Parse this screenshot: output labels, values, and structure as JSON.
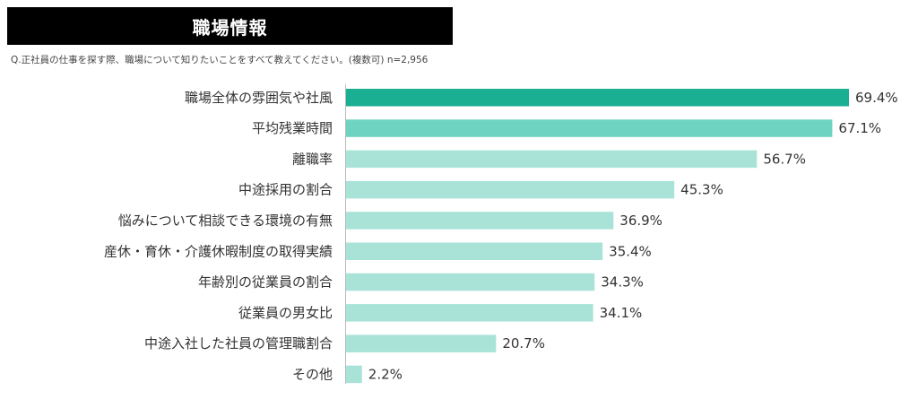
{
  "header": {
    "title": "職場情報",
    "question": "Q.正社員の仕事を探す際、職場について知りたいことをすべて教えてください。(複数可) n=2,956"
  },
  "colors": {
    "top1": "#1aae93",
    "top2": "#6fd3c1",
    "rest": "#a9e3d8"
  },
  "chart_data": {
    "type": "bar",
    "orientation": "horizontal",
    "categories": [
      "職場全体の雰囲気や社風",
      "平均残業時間",
      "離職率",
      "中途採用の割合",
      "悩みについて相談できる環境の有無",
      "産休・育休・介護休暇制度の取得実績",
      "年齢別の従業員の割合",
      "従業員の男女比",
      "中途入社した社員の管理職割合",
      "その他"
    ],
    "values": [
      69.4,
      67.1,
      56.7,
      45.3,
      36.9,
      35.4,
      34.3,
      34.1,
      20.7,
      2.2
    ],
    "labels": [
      "69.4%",
      "67.1%",
      "56.7%",
      "45.3%",
      "36.9%",
      "35.4%",
      "34.3%",
      "34.1%",
      "20.7%",
      "2.2%"
    ],
    "unit": "%",
    "xlim": [
      0,
      70
    ],
    "grid": false,
    "legend": "none"
  }
}
